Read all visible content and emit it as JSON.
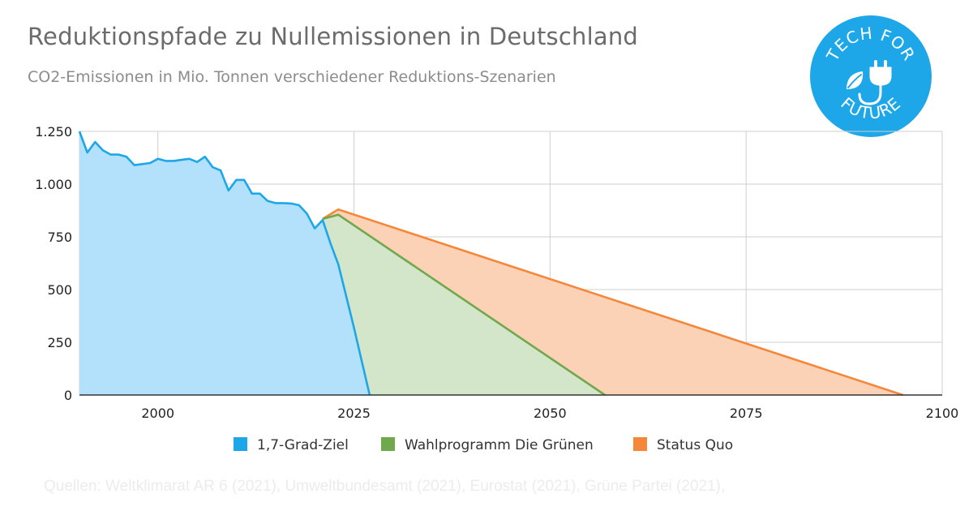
{
  "header": {
    "title": "Reduktionspfade zu Nullemissionen in Deutschland",
    "subtitle": "CO2-Emissionen in Mio. Tonnen verschiedener Reduktions-Szenarien"
  },
  "logo": {
    "line1": "TECH FOR",
    "line2": "FUTURE",
    "icon": "plug-leaf-icon",
    "color": "#1ea7e8"
  },
  "footer": {
    "source": "Quellen: Weltklimarat AR 6 (2021), Umweltbundesamt (2021), Eurostat (2021), Grüne Partei (2021),"
  },
  "chart_data": {
    "type": "area",
    "title": "",
    "xlabel": "",
    "ylabel": "",
    "xlim": [
      1990,
      2100
    ],
    "ylim": [
      0,
      1250
    ],
    "x_ticks": [
      2000,
      2025,
      2050,
      2075,
      2100
    ],
    "y_ticks": [
      0,
      250,
      500,
      750,
      1000,
      1250
    ],
    "x_tick_labels": [
      "2000",
      "2025",
      "2050",
      "2075",
      "2100"
    ],
    "y_tick_labels": [
      "0",
      "250",
      "500",
      "750",
      "1.000",
      "1.250"
    ],
    "grid": true,
    "legend_position": "bottom",
    "series": [
      {
        "name": "1,7-Grad-Ziel",
        "color": "#1ea7e8",
        "fill": "#b3e0fb",
        "points": [
          [
            1990,
            1250
          ],
          [
            1991,
            1150
          ],
          [
            1992,
            1200
          ],
          [
            1993,
            1160
          ],
          [
            1994,
            1140
          ],
          [
            1995,
            1140
          ],
          [
            1996,
            1130
          ],
          [
            1997,
            1090
          ],
          [
            1998,
            1095
          ],
          [
            1999,
            1100
          ],
          [
            2000,
            1120
          ],
          [
            2001,
            1110
          ],
          [
            2002,
            1110
          ],
          [
            2003,
            1115
          ],
          [
            2004,
            1120
          ],
          [
            2005,
            1105
          ],
          [
            2006,
            1130
          ],
          [
            2007,
            1080
          ],
          [
            2008,
            1065
          ],
          [
            2009,
            970
          ],
          [
            2010,
            1020
          ],
          [
            2011,
            1020
          ],
          [
            2012,
            955
          ],
          [
            2013,
            955
          ],
          [
            2014,
            920
          ],
          [
            2015,
            910
          ],
          [
            2016,
            910
          ],
          [
            2017,
            908
          ],
          [
            2018,
            900
          ],
          [
            2019,
            860
          ],
          [
            2020,
            790
          ],
          [
            2021,
            830
          ],
          [
            2022,
            720
          ],
          [
            2023,
            620
          ],
          [
            2024,
            470
          ],
          [
            2025,
            320
          ],
          [
            2026,
            160
          ],
          [
            2027,
            0
          ]
        ]
      },
      {
        "name": "Wahlprogramm Die Grünen",
        "color": "#70a84e",
        "fill": "#d4e6c9",
        "points": [
          [
            2021,
            835
          ],
          [
            2023,
            855
          ],
          [
            2057,
            0
          ]
        ]
      },
      {
        "name": "Status Quo",
        "color": "#f5873a",
        "fill": "#fcd2b6",
        "points": [
          [
            2021,
            835
          ],
          [
            2023,
            880
          ],
          [
            2095,
            0
          ]
        ]
      }
    ]
  }
}
